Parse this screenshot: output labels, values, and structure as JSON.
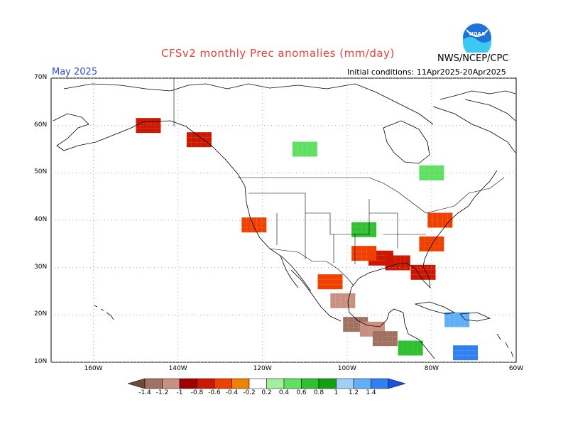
{
  "header": {
    "title": "CFSv2 monthly Prec anomalies (mm/day)",
    "month": "May 2025",
    "initial_conditions": "Initial conditions: 11Apr2025-20Apr2025",
    "agency": "NWS/NCEP/CPC",
    "logo_text": "NOAA"
  },
  "map": {
    "region": "North America",
    "lat_labels": [
      "70N",
      "60N",
      "50N",
      "40N",
      "30N",
      "20N",
      "10N"
    ],
    "lon_labels": [
      "160W",
      "140W",
      "120W",
      "100W",
      "80W",
      "60W"
    ],
    "lat_range": [
      10,
      70
    ],
    "lon_range": [
      -170,
      -60
    ],
    "grid": "dotted"
  },
  "legend": {
    "labels": [
      "-1.4",
      "-1.2",
      "-1",
      "-0.8",
      "-0.6",
      "-0.4",
      "-0.2",
      "0.2",
      "0.4",
      "0.6",
      "0.8",
      "1",
      "1.2",
      "1.4"
    ],
    "colors": [
      "#6e4a3a",
      "#a07060",
      "#c89080",
      "#a00000",
      "#cc1800",
      "#f04000",
      "#f08000",
      "#ffffff",
      "#a0f0a0",
      "#60e060",
      "#30c030",
      "#10a010",
      "#a0d0f8",
      "#60b0f8",
      "#3080f0",
      "#2050e0"
    ],
    "units": "mm/day"
  },
  "anomaly_patches": [
    {
      "lat": 32,
      "lon": -92,
      "value": -0.8
    },
    {
      "lat": 31,
      "lon": -88,
      "value": -0.8
    },
    {
      "lat": 29,
      "lon": -82,
      "value": -0.8
    },
    {
      "lat": 33,
      "lon": -96,
      "value": -0.6
    },
    {
      "lat": 35,
      "lon": -80,
      "value": -0.6
    },
    {
      "lat": 40,
      "lon": -78,
      "value": -0.6
    },
    {
      "lat": 23,
      "lon": -101,
      "value": -1.2
    },
    {
      "lat": 18,
      "lon": -98,
      "value": -1.4
    },
    {
      "lat": 17,
      "lon": -94,
      "value": -1.2
    },
    {
      "lat": 15,
      "lon": -91,
      "value": -1.4
    },
    {
      "lat": 27,
      "lon": -104,
      "value": -0.6
    },
    {
      "lat": 60,
      "lon": -147,
      "value": -0.8
    },
    {
      "lat": 57,
      "lon": -135,
      "value": -0.8
    },
    {
      "lat": 39,
      "lon": -122,
      "value": -0.6
    },
    {
      "lat": 38,
      "lon": -96,
      "value": 0.6
    },
    {
      "lat": 55,
      "lon": -110,
      "value": 0.4
    },
    {
      "lat": 50,
      "lon": -80,
      "value": 0.4
    },
    {
      "lat": 19,
      "lon": -74,
      "value": 1.2
    },
    {
      "lat": 12,
      "lon": -72,
      "value": 1.4
    },
    {
      "lat": 13,
      "lon": -85,
      "value": 0.6
    }
  ]
}
